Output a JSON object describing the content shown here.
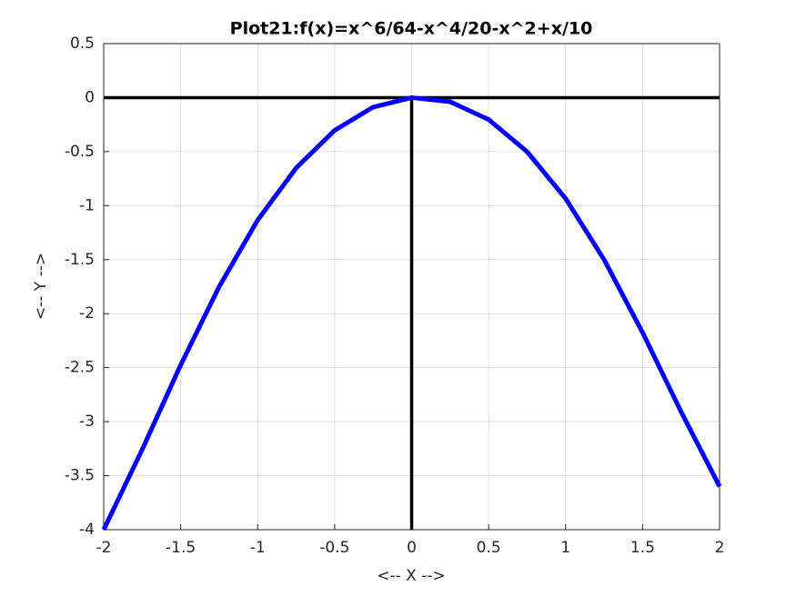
{
  "chart_data": {
    "type": "line",
    "title": "Plot21:f(x)=x^6/64-x^4/20-x^2+x/10",
    "x_label": "<-- X -->",
    "y_label": "<-- Y -->",
    "x": [
      -2,
      -1.75,
      -1.5,
      -1.25,
      -1,
      -0.75,
      -0.5,
      -0.25,
      0,
      0.25,
      0.5,
      0.75,
      1,
      1.25,
      1.5,
      1.75,
      2
    ],
    "series": [
      {
        "name": "f(x)",
        "color": "#0000ff",
        "values": [
          -4.0,
          -3.258,
          -2.475,
          -1.75,
          -1.134,
          -0.651,
          -0.303,
          -0.088,
          0,
          -0.038,
          -0.203,
          -0.501,
          -0.934,
          -1.5,
          -2.175,
          -2.908,
          -3.6
        ]
      }
    ],
    "xlim": [
      -2,
      2
    ],
    "ylim": [
      -4,
      0.5
    ],
    "xticks": [
      -2,
      -1.5,
      -1,
      -0.5,
      0,
      0.5,
      1,
      1.5,
      2
    ],
    "yticks": [
      -4,
      -3.5,
      -3,
      -2.5,
      -2,
      -1.5,
      -1,
      -0.5,
      0,
      0.5
    ],
    "grid": true
  }
}
